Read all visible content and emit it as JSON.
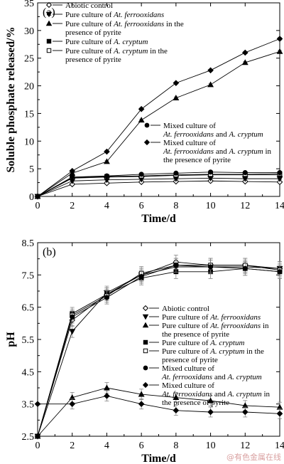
{
  "chart_data": [
    {
      "type": "line",
      "panel_label": "(a)",
      "xlabel": "Time/d",
      "ylabel": "Soluble phosphate released/%",
      "xlim": [
        0,
        14
      ],
      "ylim": [
        0,
        35
      ],
      "x_ticks": [
        "0",
        "2",
        "4",
        "6",
        "8",
        "10",
        "12",
        "14"
      ],
      "y_ticks": [
        "0",
        "5",
        "10",
        "15",
        "20",
        "25",
        "30",
        "35"
      ],
      "x": [
        0,
        2,
        4,
        6,
        8,
        10,
        12,
        14
      ],
      "series": [
        {
          "name": "Abiotic control",
          "marker": "diamond-open",
          "values": [
            0,
            2.2,
            2.4,
            2.6,
            2.7,
            2.8,
            2.7,
            2.6
          ]
        },
        {
          "name": "Pure culture of At. ferrooxidans",
          "marker": "triangle-down",
          "values": [
            0,
            2.8,
            3.0,
            3.1,
            3.2,
            3.3,
            3.2,
            3.2
          ]
        },
        {
          "name": "Pure culture of At. ferrooxidans in the presence of pyrite",
          "marker": "triangle-up",
          "values": [
            0,
            4.2,
            6.3,
            13.8,
            17.8,
            20.2,
            24.2,
            26.2
          ]
        },
        {
          "name": "Pure culture of A. cryptum",
          "marker": "square",
          "values": [
            0,
            3.3,
            3.5,
            3.6,
            3.8,
            3.9,
            3.9,
            3.9
          ]
        },
        {
          "name": "Pure culture of A. cryptum in the presence of pyrite",
          "marker": "square-open",
          "values": [
            0,
            3.4,
            3.6,
            3.7,
            3.9,
            4.0,
            4.0,
            4.1
          ]
        },
        {
          "name": "Mixed culture of At. ferrooxidans and A. cryptum",
          "marker": "circle",
          "values": [
            0,
            3.5,
            3.7,
            4.0,
            4.2,
            4.4,
            4.3,
            4.3
          ]
        },
        {
          "name": "Mixed culture of At. ferrooxidans and A. cryptum in the presence of pyrite",
          "marker": "diamond",
          "values": [
            0,
            4.6,
            8.1,
            15.8,
            20.5,
            22.8,
            26.0,
            28.5
          ]
        }
      ]
    },
    {
      "type": "line",
      "panel_label": "(b)",
      "xlabel": "Time/d",
      "ylabel": "pH",
      "xlim": [
        0,
        14
      ],
      "ylim": [
        2.5,
        8.5
      ],
      "x_ticks": [
        "0",
        "2",
        "4",
        "6",
        "8",
        "10",
        "12",
        "14"
      ],
      "y_ticks": [
        "2.5",
        "3.5",
        "4.5",
        "5.5",
        "6.5",
        "7.5",
        "8.5"
      ],
      "x": [
        0,
        2,
        4,
        6,
        8,
        10,
        12,
        14
      ],
      "series": [
        {
          "name": "Abiotic control",
          "marker": "diamond-open",
          "values": [
            2.5,
            6.1,
            6.9,
            7.5,
            7.9,
            7.8,
            7.8,
            7.7
          ]
        },
        {
          "name": "Pure culture of At. ferrooxidans",
          "marker": "triangle-down",
          "values": [
            2.5,
            5.75,
            6.95,
            7.5,
            7.75,
            7.75,
            7.75,
            7.7
          ]
        },
        {
          "name": "Pure culture of At. ferrooxidans in the presence of pyrite",
          "marker": "triangle-up",
          "values": [
            2.5,
            3.7,
            4.0,
            3.8,
            3.7,
            3.6,
            3.45,
            3.4
          ]
        },
        {
          "name": "Pure culture of A. cryptum",
          "marker": "square",
          "values": [
            2.5,
            6.3,
            6.9,
            7.4,
            7.6,
            7.6,
            7.7,
            7.6
          ]
        },
        {
          "name": "Pure culture of A. cryptum in the presence of pyrite",
          "marker": "square-open",
          "values": [
            2.5,
            6.25,
            6.85,
            7.55,
            7.8,
            7.8,
            7.8,
            7.65
          ]
        },
        {
          "name": "Mixed culture of At. ferrooxidans and A. cryptum",
          "marker": "circle",
          "values": [
            2.5,
            6.2,
            6.8,
            7.45,
            7.8,
            7.75,
            7.7,
            7.6
          ]
        },
        {
          "name": "Mixed culture of At. ferrooxidans and A. cryptum in the presence of pyrite",
          "marker": "diamond",
          "values": [
            3.5,
            3.5,
            3.75,
            3.5,
            3.3,
            3.25,
            3.25,
            3.2
          ]
        }
      ]
    }
  ],
  "legend_a": [
    {
      "parts": [
        {
          "t": "Abiotic control",
          "i": false
        }
      ]
    },
    {
      "parts": [
        {
          "t": "Pure culture of ",
          "i": false
        },
        {
          "t": "At. ferrooxidans",
          "i": true
        }
      ]
    },
    {
      "parts": [
        {
          "t": "Pure culture of ",
          "i": false
        },
        {
          "t": "At. ferrooxidans",
          "i": true
        },
        {
          "t": " in the",
          "i": false
        }
      ],
      "line2": "presence of pyrite"
    },
    {
      "parts": [
        {
          "t": "Pure culture of ",
          "i": false
        },
        {
          "t": "A. cryptum",
          "i": true
        }
      ]
    },
    {
      "parts": [
        {
          "t": "Pure culture of ",
          "i": false
        },
        {
          "t": "A. cryptum",
          "i": true
        },
        {
          "t": " in the",
          "i": false
        }
      ],
      "line2": "presence of pyrite"
    }
  ],
  "legend_a_mixed": [
    {
      "line1": "Mixed culture of",
      "line2": [
        {
          "t": "At. ferrooxidans",
          "i": true
        },
        {
          "t": " and ",
          "i": false
        },
        {
          "t": "A. cryptum",
          "i": true
        }
      ]
    },
    {
      "line1": "Mixed culture of",
      "line2": [
        {
          "t": "At. ferrooxidans",
          "i": true
        },
        {
          "t": " and ",
          "i": false
        },
        {
          "t": "A. cryptum",
          "i": true
        },
        {
          "t": " in",
          "i": false
        }
      ],
      "line3": "the presence of pyrite"
    }
  ],
  "legend_b": [
    {
      "parts": [
        {
          "t": "Abiotic control",
          "i": false
        }
      ]
    },
    {
      "parts": [
        {
          "t": "Pure culture of ",
          "i": false
        },
        {
          "t": "At. ferrooxidans",
          "i": true
        }
      ]
    },
    {
      "parts": [
        {
          "t": "Pure culture of ",
          "i": false
        },
        {
          "t": "At. ferrooxidans",
          "i": true
        },
        {
          "t": " in",
          "i": false
        }
      ],
      "line2": "the presence of pyrite"
    },
    {
      "parts": [
        {
          "t": "Pure culture of ",
          "i": false
        },
        {
          "t": "A. cryptum",
          "i": true
        }
      ]
    },
    {
      "parts": [
        {
          "t": "Pure culture of ",
          "i": false
        },
        {
          "t": "A. cryptum",
          "i": true
        },
        {
          "t": " in the",
          "i": false
        }
      ],
      "line2": "presence of pyrite"
    },
    {
      "parts": [
        {
          "t": "Mixed culture of",
          "i": false
        }
      ],
      "line2parts": [
        {
          "t": "At. ferrooxidans",
          "i": true
        },
        {
          "t": " and ",
          "i": false
        },
        {
          "t": "A. cryptum",
          "i": true
        }
      ]
    },
    {
      "parts": [
        {
          "t": "Mixed culture of",
          "i": false
        }
      ],
      "line2parts": [
        {
          "t": "At. ferrooxidans",
          "i": true
        },
        {
          "t": " and ",
          "i": false
        },
        {
          "t": "A. cryptum",
          "i": true
        },
        {
          "t": " in",
          "i": false
        }
      ],
      "line3": "the presence of pyrite"
    }
  ],
  "watermark": "@有色金属在线"
}
